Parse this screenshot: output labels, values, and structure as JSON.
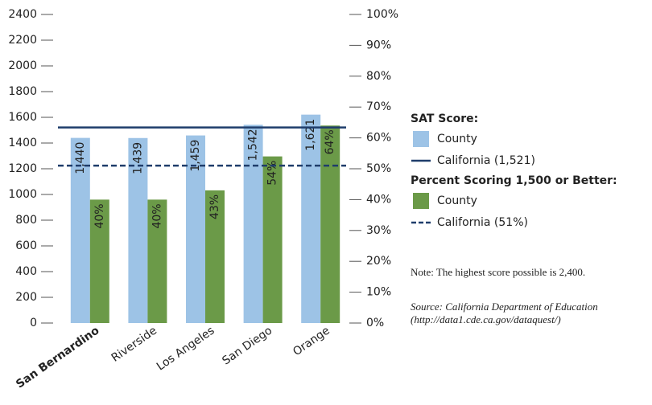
{
  "chart_data": {
    "type": "bar",
    "categories": [
      "San Bernardino",
      "Riverside",
      "Los Angeles",
      "San Diego",
      "Orange"
    ],
    "series": [
      {
        "name": "County",
        "color": "#9dc3e6",
        "axis": "y",
        "values": [
          1440,
          1439,
          1459,
          1542,
          1621
        ],
        "value_labels": [
          "1,440",
          "1,439",
          "1,459",
          "1,542",
          "1,621"
        ]
      },
      {
        "name": "County",
        "color": "#6b9a48",
        "axis": "y2",
        "values": [
          40,
          40,
          43,
          54,
          64
        ],
        "value_labels": [
          "40%",
          "40%",
          "43%",
          "54%",
          "64%"
        ]
      }
    ],
    "reference_lines": [
      {
        "name": "California (1,521)",
        "value": 1521,
        "axis": "y",
        "style": "solid",
        "color": "#1f3d6b"
      },
      {
        "name": "California (51%)",
        "value": 51,
        "axis": "y2",
        "style": "dashed",
        "color": "#1f3d6b"
      }
    ],
    "legend_titles": [
      "SAT Score:",
      "Percent Scoring 1,500 or Better:"
    ],
    "ylim": [
      0,
      2400
    ],
    "yticks": [
      0,
      200,
      400,
      600,
      800,
      1000,
      1200,
      1400,
      1600,
      1800,
      2000,
      2200,
      2400
    ],
    "y2lim": [
      0,
      100
    ],
    "y2ticks": [
      {
        "value": 0,
        "label": "0%"
      },
      {
        "value": 10,
        "label": "10%"
      },
      {
        "value": 20,
        "label": "20%"
      },
      {
        "value": 30,
        "label": "30%"
      },
      {
        "value": 40,
        "label": "40%"
      },
      {
        "value": 50,
        "label": "50%"
      },
      {
        "value": 60,
        "label": "60%"
      },
      {
        "value": 70,
        "label": "70%"
      },
      {
        "value": 80,
        "label": "80%"
      },
      {
        "value": 90,
        "label": "90%"
      },
      {
        "value": 100,
        "label": "100%"
      }
    ],
    "note": "Note: The highest score possible is 2,400.",
    "source": [
      "Source: California Department of Education",
      "(http://data1.cde.ca.gov/dataquest/)"
    ]
  }
}
